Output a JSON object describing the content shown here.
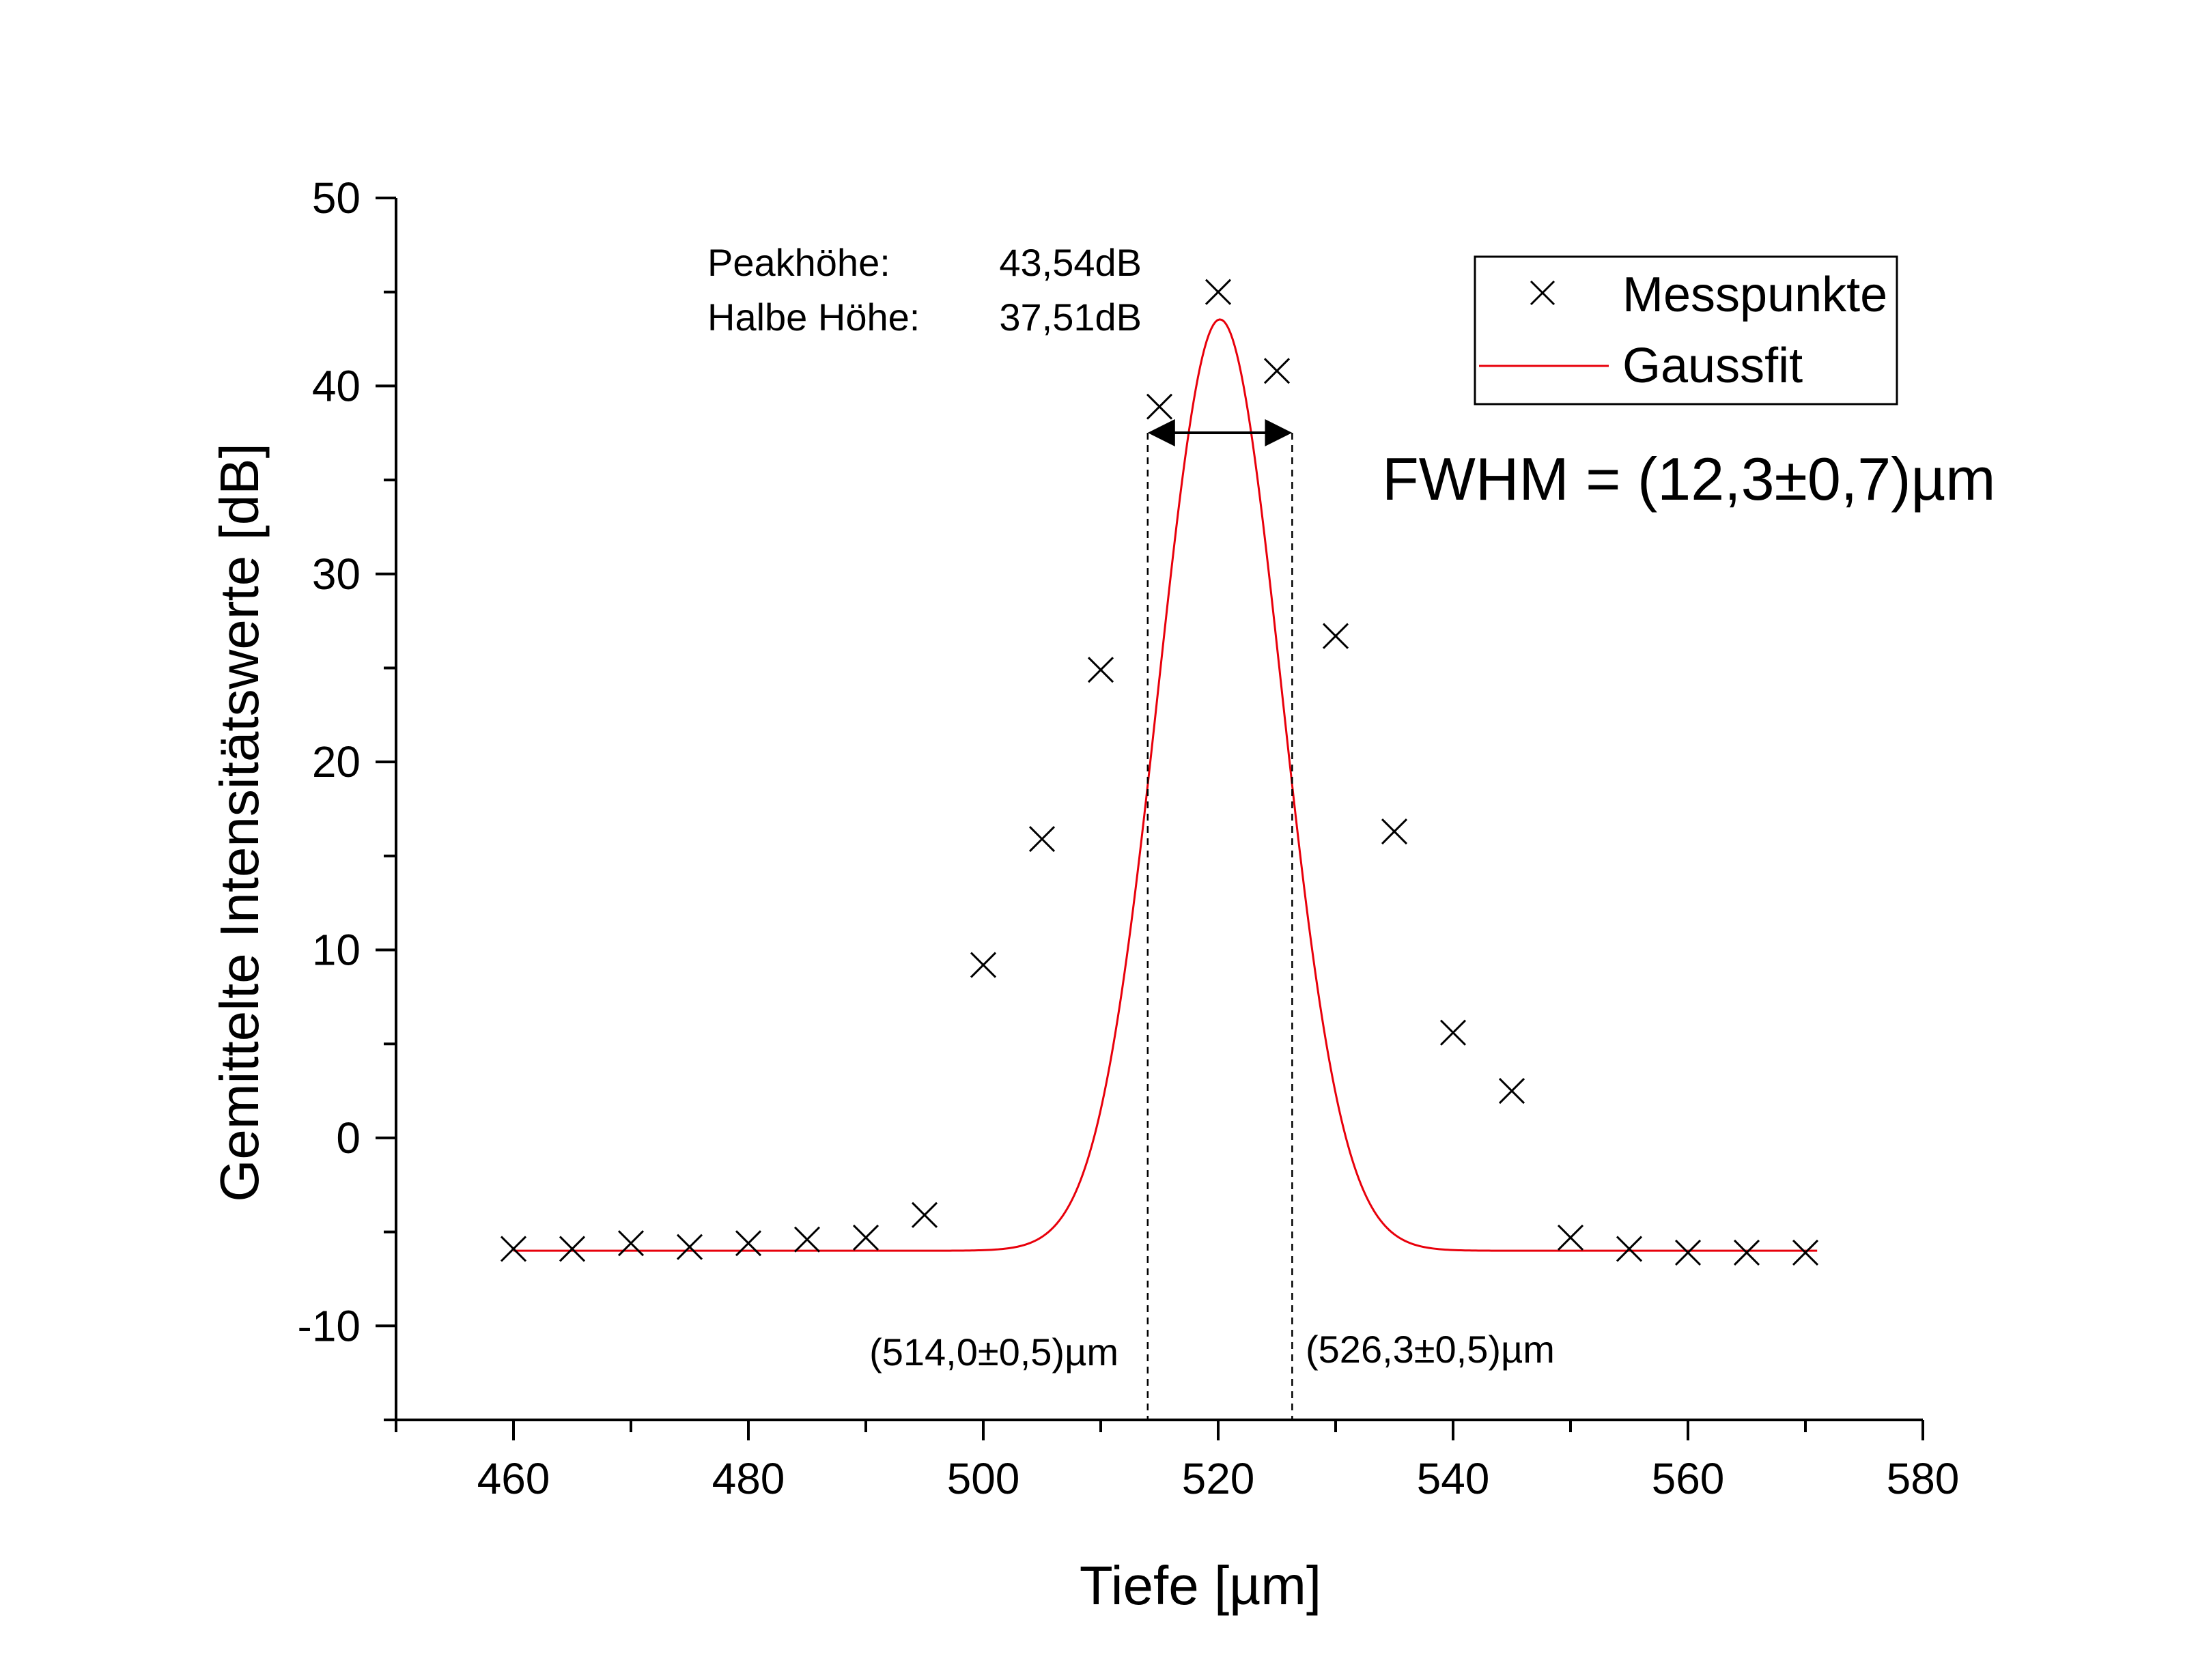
{
  "chart_data": {
    "type": "scatter",
    "xlabel": "Tiefe [µm]",
    "ylabel": "Gemittelte Intensitätswerte [dB]",
    "xlim": [
      450,
      580
    ],
    "ylim": [
      -15,
      50
    ],
    "x_ticks": [
      460,
      480,
      500,
      520,
      540,
      560,
      580
    ],
    "y_ticks": [
      -10,
      0,
      10,
      20,
      30,
      40,
      50
    ],
    "grid": false,
    "legend_position": "top-right",
    "series": [
      {
        "name": "Messpunkte",
        "kind": "scatter",
        "marker": "x",
        "color": "#000000",
        "x": [
          460,
          465,
          470,
          475,
          480,
          485,
          490,
          495,
          500,
          505,
          510,
          515,
          520,
          525,
          530,
          535,
          540,
          545,
          550,
          555,
          560,
          565,
          570
        ],
        "y": [
          -5.9,
          -5.9,
          -5.6,
          -5.8,
          -5.6,
          -5.4,
          -5.3,
          -4.1,
          9.2,
          15.9,
          24.9,
          38.9,
          45.0,
          40.8,
          26.7,
          16.3,
          5.6,
          2.5,
          -5.3,
          -5.9,
          -6.1,
          -6.1,
          -6.1
        ]
      },
      {
        "name": "Gaussfit",
        "kind": "line",
        "color": "#e8000b",
        "model": "gauss",
        "x_range": [
          460,
          571
        ],
        "baseline": -6.0,
        "center": 520.15,
        "peak": 43.54,
        "fwhm": 12.3
      }
    ],
    "annotations": {
      "peak_label": "Peakhöhe:",
      "peak_value": "43,54dB",
      "half_label": "Halbe Höhe:",
      "half_value": "37,51dB",
      "fwhm_text": "FWHM = (12,3±0,7)µm",
      "left_marker_text": "(514,0±0,5)µm",
      "right_marker_text": "(526,3±0,5)µm",
      "half_height_y": 37.51,
      "left_marker_x": 514.0,
      "right_marker_x": 526.3
    }
  }
}
